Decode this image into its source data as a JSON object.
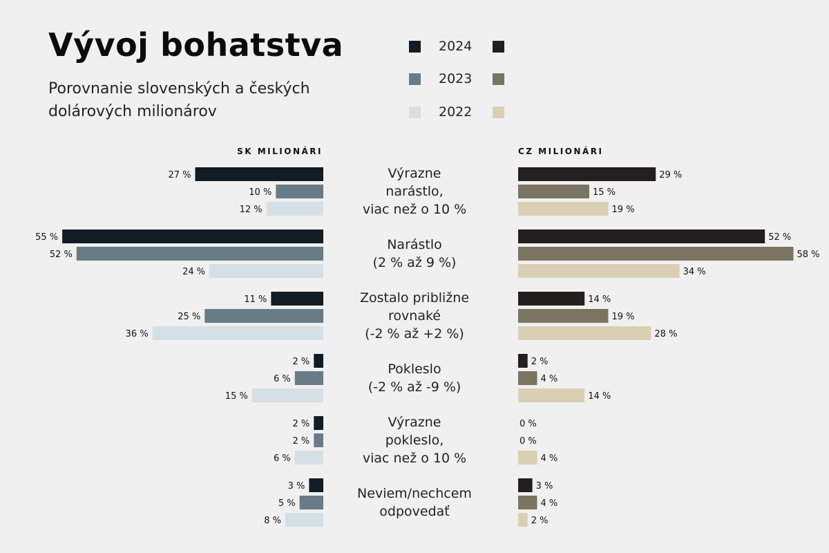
{
  "header": {
    "title": "Vývoj bohatstva",
    "subtitle": "Porovnanie slovenských a českých dolárových milionárov"
  },
  "legend": {
    "years": [
      "2024",
      "2023",
      "2022"
    ]
  },
  "colors": {
    "sk": [
      "#111c24",
      "#687c88",
      "#d5dfe6"
    ],
    "cz": [
      "#221f1d",
      "#7a7462",
      "#d9d0b4"
    ],
    "background": "#f0f0f0"
  },
  "chart_data": {
    "type": "bar",
    "orientation": "horizontal-butterfly",
    "title": "Vývoj bohatstva",
    "subtitle": "Porovnanie slovenských a českých dolárových milionárov",
    "unit": "%",
    "categories": [
      [
        "Výrazne",
        "narástlo,",
        "viac než o 10 %"
      ],
      [
        "Narástlo",
        "(2 % až 9 %)"
      ],
      [
        "Zostalo približne",
        "rovnaké",
        "(-2 % až +2 %)"
      ],
      [
        "Pokleslo",
        "(-2 % až -9 %)"
      ],
      [
        "Výrazne",
        "pokleslo,",
        "viac než o 10 %"
      ],
      [
        "Neviem/nechcem",
        "odpovedať"
      ]
    ],
    "panels": [
      {
        "title": "SK MILIONÁRI",
        "series": [
          {
            "name": "2024",
            "values": [
              27,
              55,
              11,
              2,
              2,
              3
            ]
          },
          {
            "name": "2023",
            "values": [
              10,
              52,
              25,
              6,
              2,
              5
            ]
          },
          {
            "name": "2022",
            "values": [
              12,
              24,
              36,
              15,
              6,
              8
            ]
          }
        ]
      },
      {
        "title": "CZ MILIONÁRI",
        "series": [
          {
            "name": "2024",
            "values": [
              29,
              52,
              14,
              2,
              0,
              3
            ]
          },
          {
            "name": "2023",
            "values": [
              15,
              58,
              19,
              4,
              0,
              4
            ]
          },
          {
            "name": "2022",
            "values": [
              19,
              34,
              28,
              14,
              4,
              2
            ]
          }
        ]
      }
    ],
    "value_label_suffix": " %",
    "grid": false,
    "legend_position": "top-right"
  }
}
